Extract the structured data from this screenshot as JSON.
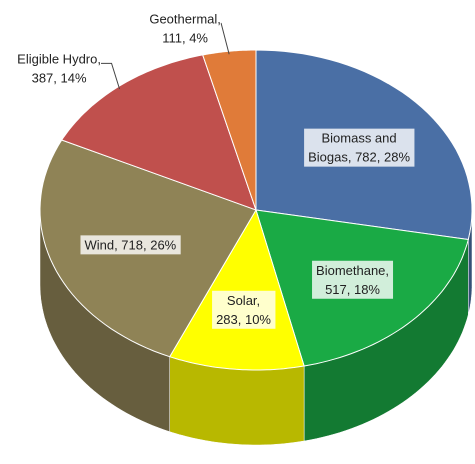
{
  "chart_data": {
    "type": "pie3d",
    "values": [
      782,
      517,
      283,
      718,
      387,
      111
    ],
    "value_labels": [
      [
        "Biomass and",
        "Biogas, 782, 28%"
      ],
      [
        "Biomethane,",
        "517, 18%"
      ],
      [
        "Solar,",
        "283, 10%"
      ],
      [
        "Wind, 718, 26%"
      ],
      [
        "Eligible Hydro,",
        "387, 14%"
      ],
      [
        "Geothermal,",
        "111, 4%"
      ]
    ],
    "colors": [
      "#4a6fa5",
      "#1aaa45",
      "#ffff00",
      "#8f8356",
      "#c0504d",
      "#e07b39"
    ]
  }
}
